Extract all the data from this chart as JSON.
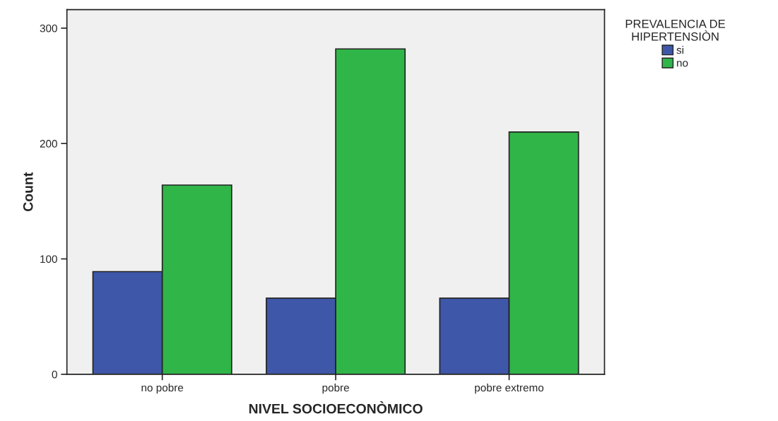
{
  "chart_data": {
    "type": "bar",
    "xlabel": "NIVEL SOCIOECONÒMICO",
    "ylabel": "Count",
    "legend_title": "PREVALENCIA DE\nHIPERTENSIÒN",
    "categories": [
      "no pobre",
      "pobre",
      "pobre extremo"
    ],
    "series": [
      {
        "name": "si",
        "color": "#3f57a8",
        "values": [
          89,
          66,
          66
        ]
      },
      {
        "name": "no",
        "color": "#30b548",
        "values": [
          164,
          282,
          210
        ]
      }
    ],
    "ylim": [
      0,
      316
    ],
    "yticks": [
      0,
      100,
      200,
      300
    ],
    "grid": false,
    "legend": "top right"
  }
}
